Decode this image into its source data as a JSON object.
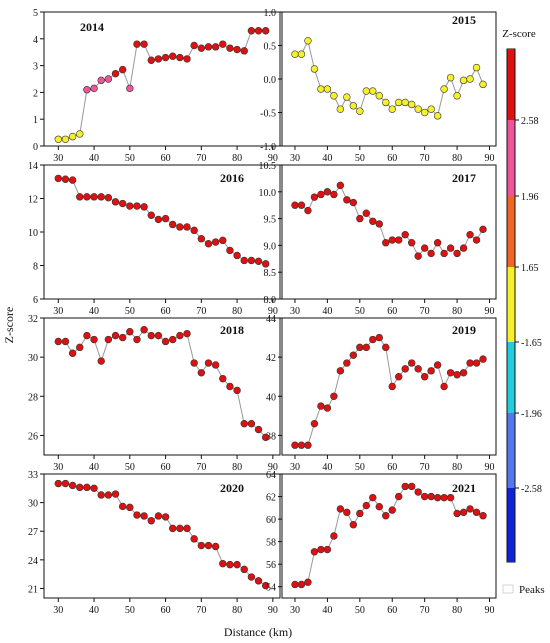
{
  "figure": {
    "ylabel": "Z-score",
    "xlabel": "Distance (km)",
    "legend_title": "Z-score",
    "legend_ticks": [
      "2.58",
      "1.96",
      "1.65",
      "-1.65",
      "-1.96",
      "-2.58"
    ],
    "peaks_label": "Peaks"
  },
  "colors": {
    "line": "#999999",
    "marker_edge": "#333333",
    "hot_99": "#dd1111",
    "hot_95": "#ee6622",
    "hot_90": "#ee5599",
    "neutral": "#f5f02a",
    "cold_90": "#22ccdd",
    "cold_95": "#5577ee",
    "cold_99": "#1122dd",
    "colorbar_stops": [
      "#dd1111",
      "#ee5599",
      "#ee6622",
      "#f5f02a",
      "#22ccdd",
      "#5577ee",
      "#1122dd"
    ]
  },
  "chart_data": [
    {
      "type": "line",
      "title": "2014",
      "x": [
        30,
        32,
        34,
        36,
        38,
        40,
        42,
        44,
        46,
        48,
        50,
        52,
        54,
        56,
        58,
        60,
        62,
        64,
        66,
        68,
        70,
        72,
        74,
        76,
        78,
        80,
        82,
        84,
        86,
        88
      ],
      "y": [
        0.25,
        0.25,
        0.35,
        0.45,
        2.1,
        2.15,
        2.45,
        2.5,
        2.7,
        2.85,
        2.15,
        3.8,
        3.8,
        3.2,
        3.25,
        3.3,
        3.35,
        3.3,
        3.25,
        3.75,
        3.65,
        3.7,
        3.7,
        3.8,
        3.65,
        3.6,
        3.55,
        4.3,
        4.3,
        4.3
      ],
      "zone": [
        "neutral",
        "neutral",
        "neutral",
        "neutral",
        "hot_90",
        "hot_90",
        "hot_90",
        "hot_90",
        "hot_99",
        "hot_99",
        "hot_90",
        "hot_99",
        "hot_99",
        "hot_99",
        "hot_99",
        "hot_99",
        "hot_99",
        "hot_99",
        "hot_99",
        "hot_99",
        "hot_99",
        "hot_99",
        "hot_99",
        "hot_99",
        "hot_99",
        "hot_99",
        "hot_99",
        "hot_99",
        "hot_99",
        "hot_99"
      ],
      "xlim": [
        26,
        92
      ],
      "ylim": [
        0,
        5
      ],
      "yticks": [
        "0",
        "1",
        "2",
        "3",
        "4",
        "5"
      ],
      "xticks": [
        "30",
        "40",
        "50",
        "60",
        "70",
        "80",
        "90"
      ]
    },
    {
      "type": "line",
      "title": "2015",
      "x": [
        30,
        32,
        34,
        36,
        38,
        40,
        42,
        44,
        46,
        48,
        50,
        52,
        54,
        56,
        58,
        60,
        62,
        64,
        66,
        68,
        70,
        72,
        74,
        76,
        78,
        80,
        82,
        84,
        86,
        88
      ],
      "y": [
        0.37,
        0.37,
        0.57,
        0.15,
        -0.15,
        -0.15,
        -0.25,
        -0.45,
        -0.27,
        -0.4,
        -0.48,
        -0.18,
        -0.18,
        -0.25,
        -0.35,
        -0.45,
        -0.35,
        -0.35,
        -0.38,
        -0.45,
        -0.5,
        -0.45,
        -0.55,
        -0.15,
        0.02,
        -0.25,
        -0.02,
        0.0,
        0.17,
        -0.08
      ],
      "zone": [
        "neutral",
        "neutral",
        "neutral",
        "neutral",
        "neutral",
        "neutral",
        "neutral",
        "neutral",
        "neutral",
        "neutral",
        "neutral",
        "neutral",
        "neutral",
        "neutral",
        "neutral",
        "neutral",
        "neutral",
        "neutral",
        "neutral",
        "neutral",
        "neutral",
        "neutral",
        "neutral",
        "neutral",
        "neutral",
        "neutral",
        "neutral",
        "neutral",
        "neutral",
        "neutral"
      ],
      "xlim": [
        26,
        92
      ],
      "ylim": [
        -1.0,
        1.0
      ],
      "yticks": [
        "-1.0",
        "-0.5",
        "0.0",
        "0.5",
        "1.0"
      ],
      "xticks": [
        "30",
        "40",
        "50",
        "60",
        "70",
        "80",
        "90"
      ]
    },
    {
      "type": "line",
      "title": "2016",
      "x": [
        30,
        32,
        34,
        36,
        38,
        40,
        42,
        44,
        46,
        48,
        50,
        52,
        54,
        56,
        58,
        60,
        62,
        64,
        66,
        68,
        70,
        72,
        74,
        76,
        78,
        80,
        82,
        84,
        86,
        88
      ],
      "y": [
        13.2,
        13.15,
        13.1,
        12.1,
        12.1,
        12.1,
        12.1,
        12.05,
        11.8,
        11.7,
        11.55,
        11.55,
        11.5,
        11.0,
        10.75,
        10.8,
        10.45,
        10.3,
        10.3,
        10.1,
        9.6,
        9.3,
        9.4,
        9.5,
        8.9,
        8.6,
        8.3,
        8.3,
        8.25,
        8.1
      ],
      "zone": [
        "hot_99",
        "hot_99",
        "hot_99",
        "hot_99",
        "hot_99",
        "hot_99",
        "hot_99",
        "hot_99",
        "hot_99",
        "hot_99",
        "hot_99",
        "hot_99",
        "hot_99",
        "hot_99",
        "hot_99",
        "hot_99",
        "hot_99",
        "hot_99",
        "hot_99",
        "hot_99",
        "hot_99",
        "hot_99",
        "hot_99",
        "hot_99",
        "hot_99",
        "hot_99",
        "hot_99",
        "hot_99",
        "hot_99",
        "hot_99"
      ],
      "xlim": [
        26,
        92
      ],
      "ylim": [
        6,
        14
      ],
      "yticks": [
        "6",
        "8",
        "10",
        "12",
        "14"
      ],
      "xticks": [
        "30",
        "40",
        "50",
        "60",
        "70",
        "80",
        "90"
      ]
    },
    {
      "type": "line",
      "title": "2017",
      "x": [
        30,
        32,
        34,
        36,
        38,
        40,
        42,
        44,
        46,
        48,
        50,
        52,
        54,
        56,
        58,
        60,
        62,
        64,
        66,
        68,
        70,
        72,
        74,
        76,
        78,
        80,
        82,
        84,
        86,
        88
      ],
      "y": [
        9.75,
        9.75,
        9.65,
        9.9,
        9.95,
        10.0,
        9.95,
        10.12,
        9.85,
        9.8,
        9.5,
        9.6,
        9.45,
        9.4,
        9.05,
        9.1,
        9.1,
        9.2,
        9.05,
        8.8,
        8.95,
        8.85,
        9.05,
        8.85,
        8.95,
        8.85,
        8.95,
        9.2,
        9.1,
        9.3
      ],
      "zone": [
        "hot_99",
        "hot_99",
        "hot_99",
        "hot_99",
        "hot_99",
        "hot_99",
        "hot_99",
        "hot_99",
        "hot_99",
        "hot_99",
        "hot_99",
        "hot_99",
        "hot_99",
        "hot_99",
        "hot_99",
        "hot_99",
        "hot_99",
        "hot_99",
        "hot_99",
        "hot_99",
        "hot_99",
        "hot_99",
        "hot_99",
        "hot_99",
        "hot_99",
        "hot_99",
        "hot_99",
        "hot_99",
        "hot_99",
        "hot_99"
      ],
      "xlim": [
        26,
        92
      ],
      "ylim": [
        8.0,
        10.5
      ],
      "yticks": [
        "8.0",
        "8.5",
        "9.0",
        "9.5",
        "10.0",
        "10.5"
      ],
      "xticks": [
        "30",
        "40",
        "50",
        "60",
        "70",
        "80",
        "90"
      ]
    },
    {
      "type": "line",
      "title": "2018",
      "x": [
        30,
        32,
        34,
        36,
        38,
        40,
        42,
        44,
        46,
        48,
        50,
        52,
        54,
        56,
        58,
        60,
        62,
        64,
        66,
        68,
        70,
        72,
        74,
        76,
        78,
        80,
        82,
        84,
        86,
        88
      ],
      "y": [
        30.8,
        30.8,
        30.2,
        30.5,
        31.1,
        30.9,
        29.8,
        30.9,
        31.1,
        31.0,
        31.3,
        30.9,
        31.4,
        31.1,
        31.1,
        30.8,
        30.9,
        31.1,
        31.2,
        29.7,
        29.2,
        29.7,
        29.6,
        28.9,
        28.5,
        28.3,
        26.6,
        26.6,
        26.3,
        25.9
      ],
      "zone": [
        "hot_99",
        "hot_99",
        "hot_99",
        "hot_99",
        "hot_99",
        "hot_99",
        "hot_99",
        "hot_99",
        "hot_99",
        "hot_99",
        "hot_99",
        "hot_99",
        "hot_99",
        "hot_99",
        "hot_99",
        "hot_99",
        "hot_99",
        "hot_99",
        "hot_99",
        "hot_99",
        "hot_99",
        "hot_99",
        "hot_99",
        "hot_99",
        "hot_99",
        "hot_99",
        "hot_99",
        "hot_99",
        "hot_99",
        "hot_99"
      ],
      "xlim": [
        26,
        92
      ],
      "ylim": [
        25,
        32
      ],
      "yticks": [
        "26",
        "28",
        "30",
        "32"
      ],
      "xticks": [
        "30",
        "40",
        "50",
        "60",
        "70",
        "80",
        "90"
      ]
    },
    {
      "type": "line",
      "title": "2019",
      "x": [
        30,
        32,
        34,
        36,
        38,
        40,
        42,
        44,
        46,
        48,
        50,
        52,
        54,
        56,
        58,
        60,
        62,
        64,
        66,
        68,
        70,
        72,
        74,
        76,
        78,
        80,
        82,
        84,
        86,
        88
      ],
      "y": [
        37.5,
        37.5,
        37.5,
        38.6,
        39.5,
        39.4,
        40.0,
        41.3,
        41.7,
        42.1,
        42.5,
        42.5,
        42.9,
        43.0,
        42.5,
        40.5,
        41.0,
        41.4,
        41.7,
        41.4,
        41.0,
        41.3,
        41.6,
        40.5,
        41.2,
        41.1,
        41.2,
        41.7,
        41.7,
        41.9
      ],
      "zone": [
        "hot_99",
        "hot_99",
        "hot_99",
        "hot_99",
        "hot_99",
        "hot_99",
        "hot_99",
        "hot_99",
        "hot_99",
        "hot_99",
        "hot_99",
        "hot_99",
        "hot_99",
        "hot_99",
        "hot_99",
        "hot_99",
        "hot_99",
        "hot_99",
        "hot_99",
        "hot_99",
        "hot_99",
        "hot_99",
        "hot_99",
        "hot_99",
        "hot_99",
        "hot_99",
        "hot_99",
        "hot_99",
        "hot_99",
        "hot_99"
      ],
      "xlim": [
        26,
        92
      ],
      "ylim": [
        37,
        44
      ],
      "yticks": [
        "38",
        "40",
        "42",
        "44"
      ],
      "xticks": [
        "30",
        "40",
        "50",
        "60",
        "70",
        "80",
        "90"
      ]
    },
    {
      "type": "line",
      "title": "2020",
      "x": [
        30,
        32,
        34,
        36,
        38,
        40,
        42,
        44,
        46,
        48,
        50,
        52,
        54,
        56,
        58,
        60,
        62,
        64,
        66,
        68,
        70,
        72,
        74,
        76,
        78,
        80,
        82,
        84,
        86,
        88
      ],
      "y": [
        32.0,
        32.0,
        31.8,
        31.6,
        31.6,
        31.5,
        30.8,
        30.8,
        30.9,
        29.6,
        29.5,
        28.7,
        28.6,
        28.1,
        28.6,
        28.5,
        27.3,
        27.3,
        27.3,
        26.2,
        25.5,
        25.5,
        25.4,
        23.6,
        23.5,
        23.5,
        23.0,
        22.2,
        21.8,
        21.3
      ],
      "zone": [
        "hot_99",
        "hot_99",
        "hot_99",
        "hot_99",
        "hot_99",
        "hot_99",
        "hot_99",
        "hot_99",
        "hot_99",
        "hot_99",
        "hot_99",
        "hot_99",
        "hot_99",
        "hot_99",
        "hot_99",
        "hot_99",
        "hot_99",
        "hot_99",
        "hot_99",
        "hot_99",
        "hot_99",
        "hot_99",
        "hot_99",
        "hot_99",
        "hot_99",
        "hot_99",
        "hot_99",
        "hot_99",
        "hot_99",
        "hot_99"
      ],
      "xlim": [
        26,
        92
      ],
      "ylim": [
        20,
        33
      ],
      "yticks": [
        "21",
        "24",
        "27",
        "30",
        "33"
      ],
      "xticks": [
        "30",
        "40",
        "50",
        "60",
        "70",
        "80",
        "90"
      ]
    },
    {
      "type": "line",
      "title": "2021",
      "x": [
        30,
        32,
        34,
        36,
        38,
        40,
        42,
        44,
        46,
        48,
        50,
        52,
        54,
        56,
        58,
        60,
        62,
        64,
        66,
        68,
        70,
        72,
        74,
        76,
        78,
        80,
        82,
        84,
        86,
        88
      ],
      "y": [
        54.2,
        54.2,
        54.4,
        57.1,
        57.3,
        57.3,
        58.5,
        60.9,
        60.6,
        59.5,
        60.5,
        61.2,
        61.9,
        61.1,
        60.3,
        60.8,
        62.0,
        62.9,
        62.9,
        62.4,
        62.0,
        62.0,
        61.9,
        61.9,
        61.9,
        60.5,
        60.6,
        60.9,
        60.6,
        60.3
      ],
      "zone": [
        "hot_99",
        "hot_99",
        "hot_99",
        "hot_99",
        "hot_99",
        "hot_99",
        "hot_99",
        "hot_99",
        "hot_99",
        "hot_99",
        "hot_99",
        "hot_99",
        "hot_99",
        "hot_99",
        "hot_99",
        "hot_99",
        "hot_99",
        "hot_99",
        "hot_99",
        "hot_99",
        "hot_99",
        "hot_99",
        "hot_99",
        "hot_99",
        "hot_99",
        "hot_99",
        "hot_99",
        "hot_99",
        "hot_99",
        "hot_99"
      ],
      "xlim": [
        26,
        92
      ],
      "ylim": [
        53,
        64
      ],
      "yticks": [
        "54",
        "56",
        "58",
        "60",
        "62",
        "64"
      ],
      "xticks": [
        "30",
        "40",
        "50",
        "60",
        "70",
        "80",
        "90"
      ]
    }
  ]
}
